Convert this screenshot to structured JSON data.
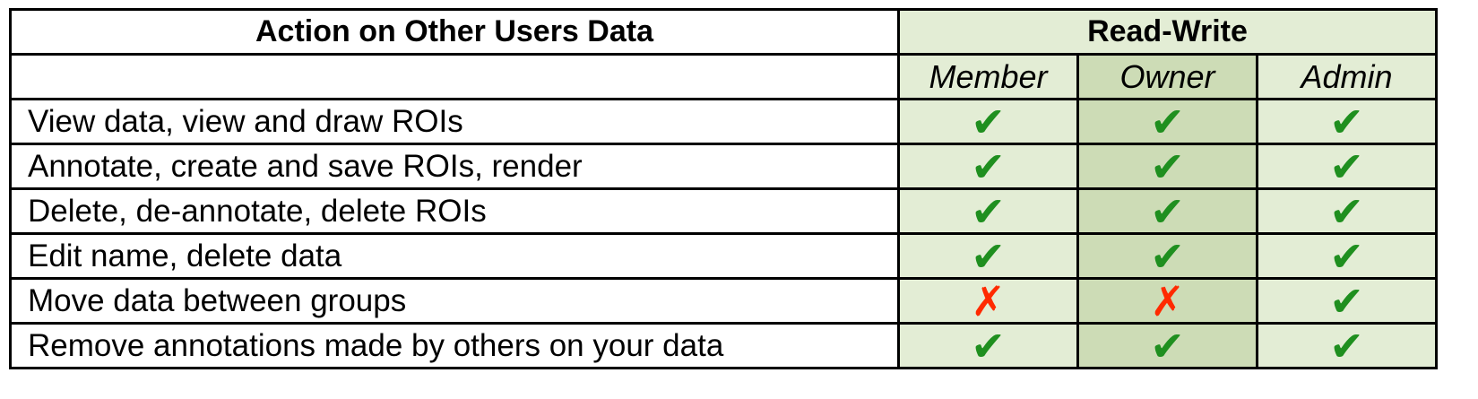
{
  "header": {
    "action_title": "Action on Other Users Data",
    "group_title": "Read-Write"
  },
  "roles": [
    "Member",
    "Owner",
    "Admin"
  ],
  "glyphs": {
    "yes": "✔",
    "no": "✗"
  },
  "colors": {
    "check": "#1f8f1f",
    "cross": "#ff2a00",
    "light_fill": "#e3edd5",
    "owner_fill": "#cddcb6"
  },
  "rows": [
    {
      "action": "View data, view and draw ROIs",
      "member": "yes",
      "owner": "yes",
      "admin": "yes"
    },
    {
      "action": "Annotate, create and save ROIs, render",
      "member": "yes",
      "owner": "yes",
      "admin": "yes"
    },
    {
      "action": "Delete, de-annotate, delete ROIs",
      "member": "yes",
      "owner": "yes",
      "admin": "yes"
    },
    {
      "action": "Edit name, delete data",
      "member": "yes",
      "owner": "yes",
      "admin": "yes"
    },
    {
      "action": "Move data between groups",
      "member": "no",
      "owner": "no",
      "admin": "yes"
    },
    {
      "action": "Remove annotations made by others on your data",
      "member": "yes",
      "owner": "yes",
      "admin": "yes"
    }
  ]
}
